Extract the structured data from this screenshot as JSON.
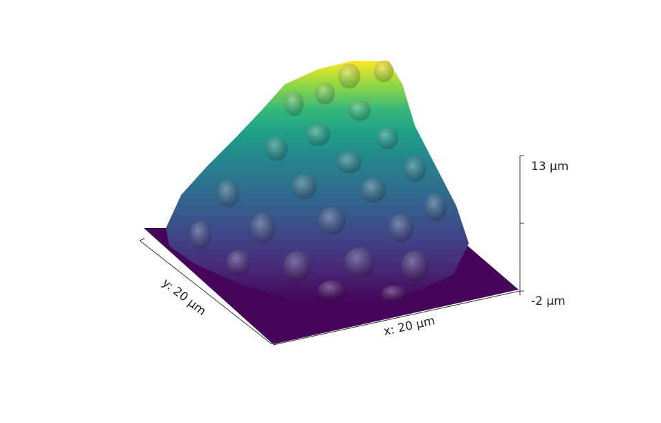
{
  "axes": {
    "x_label": "x: 20 µm",
    "y_label": "y: 20 µm",
    "z_top_label": "13 µm",
    "z_bottom_label": "-2 µm"
  }
}
